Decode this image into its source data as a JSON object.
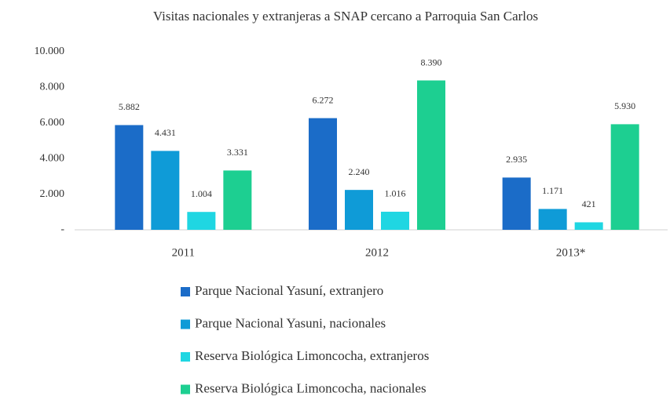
{
  "chart_data": {
    "type": "bar",
    "title": "Visitas nacionales y extranjeras a SNAP cercano a Parroquia San Carlos",
    "categories": [
      "2011",
      "2012",
      "2013*"
    ],
    "series": [
      {
        "name": "Parque Nacional Yasuní, extranjero",
        "color": "#1b6cc8",
        "values": [
          5882,
          6272,
          2935
        ],
        "value_labels": [
          "5.882",
          "6.272",
          "2.935"
        ]
      },
      {
        "name": "Parque Nacional Yasuni, nacionales",
        "color": "#0f9bd7",
        "values": [
          4431,
          2240,
          1171
        ],
        "value_labels": [
          "4.431",
          "2.240",
          "1.171"
        ]
      },
      {
        "name": "Reserva Biológica Limoncocha, extranjeros",
        "color": "#1fd6e2",
        "values": [
          1004,
          1016,
          421
        ],
        "value_labels": [
          "1.004",
          "1.016",
          "421"
        ]
      },
      {
        "name": "Reserva Biológica Limoncocha, nacionales",
        "color": "#1dcf91",
        "values": [
          3331,
          8390,
          5930
        ],
        "value_labels": [
          "3.331",
          "8.390",
          "5.930"
        ]
      }
    ],
    "ylim": [
      0,
      10000
    ],
    "yticks": [
      {
        "value": 0,
        "label": "-"
      },
      {
        "value": 2000,
        "label": "2.000"
      },
      {
        "value": 4000,
        "label": "4.000"
      },
      {
        "value": 6000,
        "label": "6.000"
      },
      {
        "value": 8000,
        "label": "8.000"
      },
      {
        "value": 10000,
        "label": "10.000"
      }
    ],
    "grid": false,
    "legend": "bottom"
  }
}
